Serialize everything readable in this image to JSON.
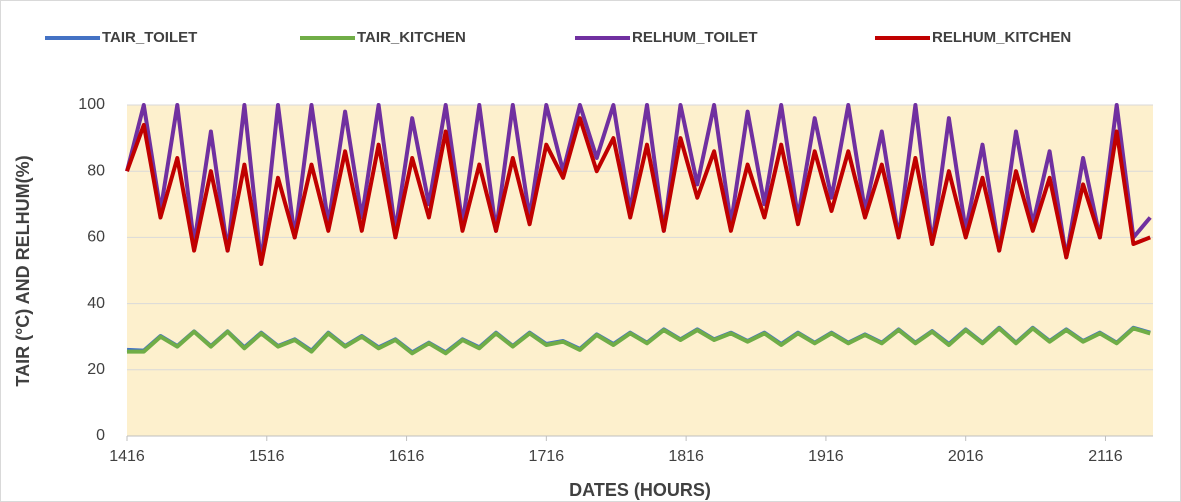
{
  "chart_data": {
    "type": "line",
    "x_label": "DATES (HOURS)",
    "y_label": "TAIR (°C) AND RELHUM(%)",
    "x": [
      1416,
      1428,
      1440,
      1452,
      1464,
      1476,
      1488,
      1500,
      1512,
      1524,
      1536,
      1548,
      1560,
      1572,
      1584,
      1596,
      1608,
      1620,
      1632,
      1644,
      1656,
      1668,
      1680,
      1692,
      1704,
      1716,
      1728,
      1740,
      1752,
      1764,
      1776,
      1788,
      1800,
      1812,
      1824,
      1836,
      1848,
      1860,
      1872,
      1884,
      1896,
      1908,
      1920,
      1932,
      1944,
      1956,
      1968,
      1980,
      1992,
      2004,
      2016,
      2028,
      2040,
      2052,
      2064,
      2076,
      2088,
      2100,
      2112,
      2124,
      2136,
      2148
    ],
    "xlim": [
      1416,
      2150
    ],
    "xticks": [
      1416,
      1516,
      1616,
      1716,
      1816,
      1916,
      2016,
      2116
    ],
    "ylim": [
      0,
      100
    ],
    "yticks": [
      0,
      20,
      40,
      60,
      80,
      100
    ],
    "grid": true,
    "legend": "top",
    "plot_background": "#fdf0cd",
    "series": [
      {
        "name": "TAIR_TOILET",
        "color": "#4472c4",
        "values": [
          26,
          25.8,
          30.2,
          27.2,
          31.6,
          27.2,
          31.6,
          26.8,
          31.2,
          27.2,
          29.2,
          25.8,
          31.2,
          27.2,
          30.2,
          26.8,
          29.2,
          25.3,
          28.2,
          25.3,
          29.2,
          26.8,
          31.2,
          27.2,
          31.2,
          27.8,
          28.7,
          26.3,
          30.7,
          27.8,
          31.2,
          28.2,
          32.2,
          29.2,
          32.2,
          29.2,
          31.2,
          28.7,
          31.2,
          27.8,
          31.2,
          28.2,
          31.2,
          28.2,
          30.7,
          28.2,
          32.2,
          28.2,
          31.7,
          27.8,
          32.2,
          28.2,
          32.7,
          28.2,
          32.7,
          28.7,
          32.2,
          28.7,
          31.2,
          28.2,
          32.7,
          31.2
        ]
      },
      {
        "name": "TAIR_KITCHEN",
        "color": "#70ad47",
        "values": [
          25.5,
          25.5,
          30,
          27,
          31.5,
          27,
          31.5,
          26.5,
          31,
          27,
          29,
          25.5,
          31,
          27,
          30,
          26.5,
          29,
          25,
          28,
          25,
          29,
          26.5,
          31,
          27,
          31,
          27.5,
          28.5,
          26,
          30.5,
          27.5,
          31,
          28,
          32,
          29,
          32,
          29,
          31,
          28.5,
          31,
          27.5,
          31,
          28,
          31,
          28,
          30.5,
          28,
          32,
          28,
          31.5,
          27.5,
          32,
          28,
          32.5,
          28,
          32.5,
          28.5,
          32,
          28.5,
          31,
          28,
          32.5,
          31
        ]
      },
      {
        "name": "RELHUM_TOILET",
        "color": "#7030a0",
        "values": [
          80,
          100,
          68,
          100,
          58,
          92,
          56,
          100,
          52,
          100,
          60,
          100,
          64,
          98,
          66,
          100,
          62,
          96,
          70,
          100,
          64,
          100,
          62,
          100,
          66,
          100,
          80,
          100,
          84,
          100,
          68,
          100,
          62,
          100,
          76,
          100,
          64,
          98,
          70,
          100,
          66,
          96,
          72,
          100,
          68,
          92,
          60,
          100,
          58,
          96,
          62,
          88,
          56,
          92,
          64,
          86,
          54,
          84,
          60,
          100,
          60,
          66
        ]
      },
      {
        "name": "RELHUM_KITCHEN",
        "color": "#c00000",
        "values": [
          80,
          94,
          66,
          84,
          56,
          80,
          56,
          82,
          52,
          78,
          60,
          82,
          62,
          86,
          62,
          88,
          60,
          84,
          66,
          92,
          62,
          82,
          62,
          84,
          64,
          88,
          78,
          96,
          80,
          90,
          66,
          88,
          62,
          90,
          72,
          86,
          62,
          82,
          66,
          88,
          64,
          86,
          68,
          86,
          66,
          82,
          60,
          84,
          58,
          80,
          60,
          78,
          56,
          80,
          62,
          78,
          54,
          76,
          60,
          92,
          58,
          60
        ]
      }
    ]
  }
}
